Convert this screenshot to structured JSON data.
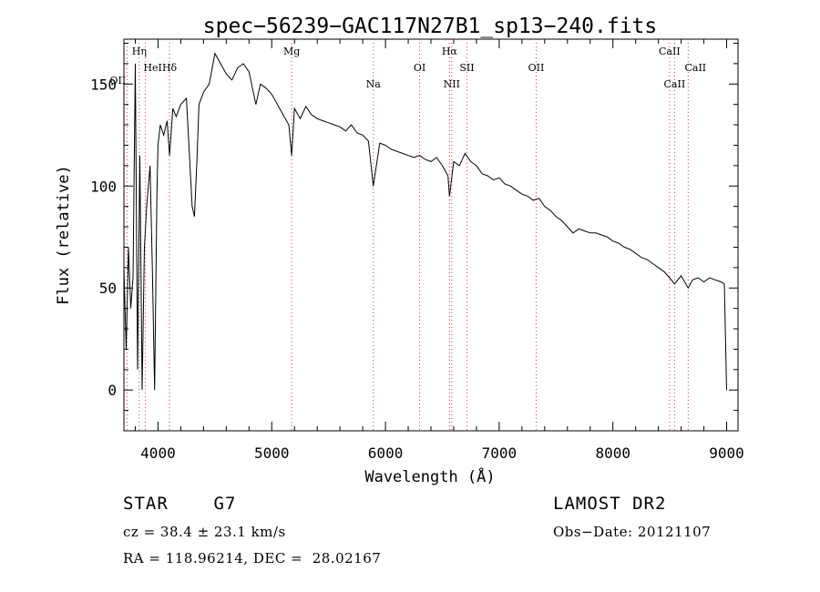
{
  "chart_data": {
    "type": "line",
    "title": "spec−56239−GAC117N27B1_sp13−240.fits",
    "xlabel": "Wavelength (Å)",
    "ylabel": "Flux (relative)",
    "xlim": [
      3700,
      9100
    ],
    "ylim": [
      -20,
      172
    ],
    "xticks": [
      4000,
      5000,
      6000,
      7000,
      8000,
      9000
    ],
    "yticks": [
      0,
      50,
      100,
      150
    ],
    "grid": false,
    "series": [
      {
        "x": [
          3700,
          3720,
          3740,
          3760,
          3780,
          3800,
          3820,
          3840,
          3860,
          3880,
          3900,
          3930,
          3950,
          3970,
          3990,
          4000,
          4020,
          4050,
          4080,
          4101,
          4130,
          4160,
          4200,
          4250,
          4300,
          4320,
          4340,
          4360,
          4400,
          4450,
          4500,
          4550,
          4600,
          4650,
          4700,
          4750,
          4800,
          4861,
          4900,
          4950,
          5000,
          5050,
          5100,
          5150,
          5175,
          5200,
          5250,
          5300,
          5350,
          5400,
          5450,
          5500,
          5550,
          5600,
          5650,
          5700,
          5750,
          5800,
          5850,
          5893,
          5950,
          6000,
          6050,
          6100,
          6150,
          6200,
          6250,
          6300,
          6350,
          6400,
          6450,
          6500,
          6550,
          6563,
          6600,
          6650,
          6700,
          6750,
          6800,
          6850,
          6900,
          6950,
          7000,
          7050,
          7100,
          7150,
          7200,
          7250,
          7300,
          7350,
          7400,
          7450,
          7500,
          7550,
          7600,
          7650,
          7700,
          7750,
          7800,
          7850,
          7900,
          7950,
          8000,
          8050,
          8100,
          8150,
          8200,
          8250,
          8300,
          8350,
          8400,
          8450,
          8498,
          8542,
          8600,
          8662,
          8700,
          8750,
          8800,
          8850,
          8900,
          8950,
          8980,
          9000
        ],
        "y": [
          60,
          20,
          70,
          40,
          55,
          160,
          10,
          115,
          0,
          70,
          90,
          110,
          60,
          0,
          95,
          120,
          130,
          125,
          132,
          115,
          138,
          134,
          140,
          143,
          90,
          85,
          110,
          140,
          146,
          150,
          165,
          160,
          155,
          152,
          158,
          160,
          156,
          140,
          150,
          148,
          145,
          140,
          135,
          130,
          115,
          138,
          133,
          139,
          135,
          133,
          132,
          131,
          130,
          129,
          127,
          130,
          126,
          125,
          122,
          100,
          121,
          120,
          118,
          117,
          116,
          115,
          114,
          115,
          113,
          112,
          114,
          110,
          105,
          95,
          112,
          110,
          116,
          112,
          110,
          106,
          105,
          103,
          104,
          101,
          100,
          98,
          96,
          95,
          93,
          94,
          90,
          88,
          85,
          83,
          80,
          77,
          79,
          78,
          77,
          77,
          76,
          75,
          73,
          72,
          70,
          69,
          67,
          65,
          64,
          62,
          60,
          58,
          55,
          52,
          56,
          50,
          54,
          55,
          53,
          55,
          54,
          53,
          52,
          0
        ]
      }
    ],
    "lines": [
      {
        "label": "Hη",
        "x": 3835
      },
      {
        "label": "OII",
        "x": 3727
      },
      {
        "label": "HeI",
        "x": 3889
      },
      {
        "label": "Hδ",
        "x": 4101
      },
      {
        "label": "Mg",
        "x": 5175
      },
      {
        "label": "Na",
        "x": 5893
      },
      {
        "label": "OI",
        "x": 6300
      },
      {
        "label": "Hα",
        "x": 6563
      },
      {
        "label": "NII",
        "x": 6583
      },
      {
        "label": "SII",
        "x": 6716
      },
      {
        "label": "OII",
        "x": 7325
      },
      {
        "label": "CaII",
        "x": 8498
      },
      {
        "label": "CaII",
        "x": 8542
      },
      {
        "label": "CaII",
        "x": 8662
      }
    ]
  },
  "info": {
    "object": "STAR    G7",
    "survey": "LAMOST DR2",
    "cz": "cz = 38.4 ± 23.1 km/s",
    "obs_date": "Obs−Date: 20121107",
    "coords": "RA = 118.96214, DEC =  28.02167"
  }
}
